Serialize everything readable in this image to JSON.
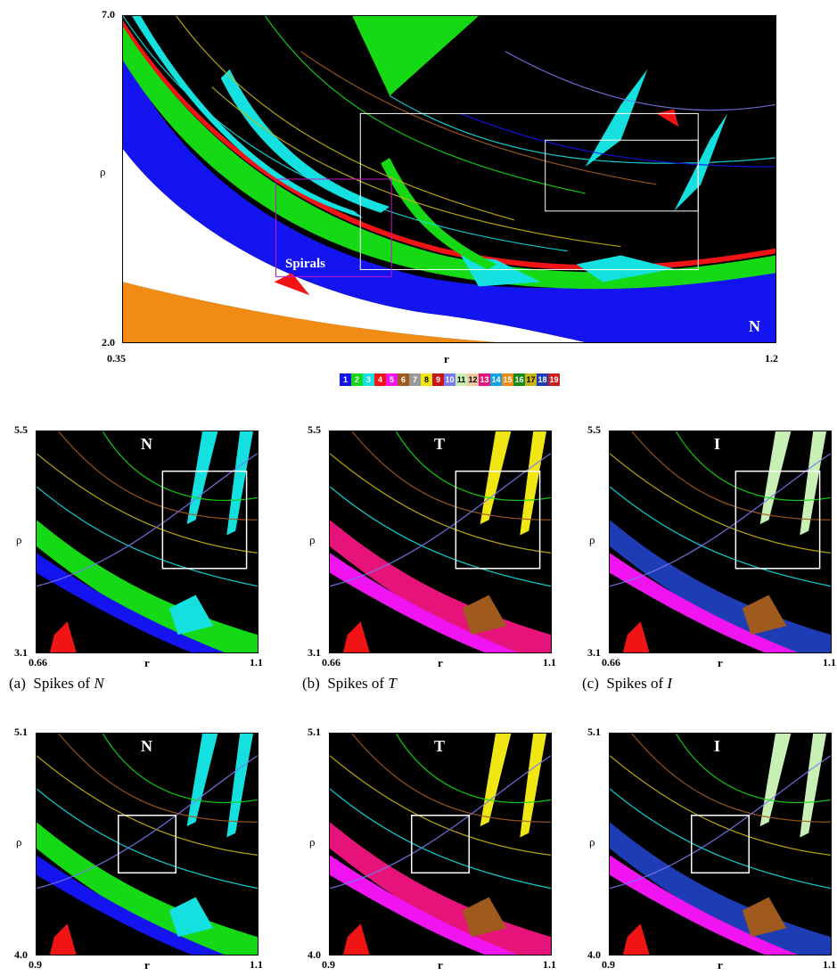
{
  "main": {
    "y_top": "7.0",
    "y_bottom": "2.0",
    "y_label": "ρ",
    "x_left": "0.35",
    "x_right": "1.2",
    "x_label": "r",
    "corner": "N",
    "box_label": "Spirals"
  },
  "legend": {
    "items": [
      {
        "n": "1",
        "color": "#1414f0"
      },
      {
        "n": "2",
        "color": "#14d914"
      },
      {
        "n": "3",
        "color": "#14e0e0"
      },
      {
        "n": "4",
        "color": "#f01414"
      },
      {
        "n": "5",
        "color": "#f014f0"
      },
      {
        "n": "6",
        "color": "#a05a1e"
      },
      {
        "n": "7",
        "color": "#9a9a9a"
      },
      {
        "n": "8",
        "color": "#f0e614"
      },
      {
        "n": "9",
        "color": "#c81414"
      },
      {
        "n": "10",
        "color": "#7878f0"
      },
      {
        "n": "11",
        "color": "#c8f0b4"
      },
      {
        "n": "12",
        "color": "#f0c8a0"
      },
      {
        "n": "13",
        "color": "#e6147a"
      },
      {
        "n": "14",
        "color": "#14a0e6"
      },
      {
        "n": "15",
        "color": "#f08c14"
      },
      {
        "n": "16",
        "color": "#148c14"
      },
      {
        "n": "17",
        "color": "#c8b414"
      },
      {
        "n": "18",
        "color": "#1e3cb4"
      },
      {
        "n": "19",
        "color": "#c81e1e"
      }
    ]
  },
  "row1": {
    "y_top": "5.5",
    "y_bottom": "3.1",
    "y_label": "ρ",
    "x_left": "0.66",
    "x_right": "1.1",
    "x_label": "r",
    "panels": [
      {
        "corner": "N",
        "caption_prefix": "(a)  Spikes of ",
        "caption_var": "N"
      },
      {
        "corner": "T",
        "caption_prefix": "(b)  Spikes of ",
        "caption_var": "T"
      },
      {
        "corner": "I",
        "caption_prefix": "(c)  Spikes of ",
        "caption_var": "I"
      }
    ]
  },
  "row2": {
    "y_top": "5.1",
    "y_bottom": "4.0",
    "y_label": "ρ",
    "x_left": "0.9",
    "x_right": "1.1",
    "x_label": "r",
    "panels": [
      {
        "corner": "N"
      },
      {
        "corner": "T"
      },
      {
        "corner": "I"
      }
    ]
  }
}
